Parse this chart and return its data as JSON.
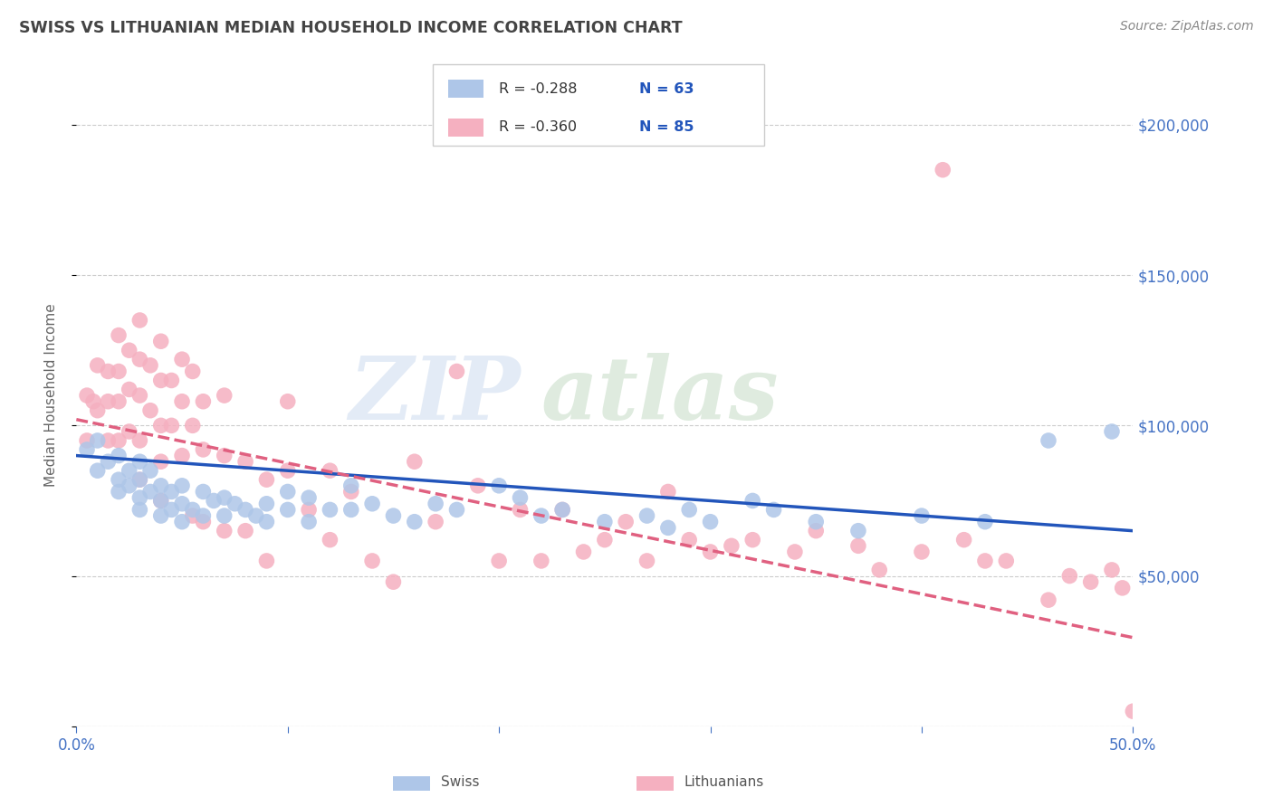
{
  "title": "SWISS VS LITHUANIAN MEDIAN HOUSEHOLD INCOME CORRELATION CHART",
  "source": "Source: ZipAtlas.com",
  "ylabel": "Median Household Income",
  "xlim": [
    0.0,
    0.5
  ],
  "ylim": [
    0,
    220000
  ],
  "yticks": [
    0,
    50000,
    100000,
    150000,
    200000
  ],
  "ytick_labels": [
    "",
    "$50,000",
    "$100,000",
    "$150,000",
    "$200,000"
  ],
  "xticks": [
    0.0,
    0.1,
    0.2,
    0.3,
    0.4,
    0.5
  ],
  "xtick_labels": [
    "0.0%",
    "",
    "",
    "",
    "",
    "50.0%"
  ],
  "legend_R_swiss": "R = -0.288",
  "legend_N_swiss": "N = 63",
  "legend_R_lith": "R = -0.360",
  "legend_N_lith": "N = 85",
  "swiss_color": "#aec6e8",
  "swiss_line_color": "#2255bb",
  "lith_color": "#f5b0c0",
  "lith_line_color": "#e06080",
  "background_color": "#ffffff",
  "grid_color": "#cccccc",
  "axis_tick_color": "#4472c4",
  "title_color": "#444444",
  "source_color": "#888888",
  "swiss_x": [
    0.005,
    0.01,
    0.01,
    0.015,
    0.02,
    0.02,
    0.02,
    0.025,
    0.025,
    0.03,
    0.03,
    0.03,
    0.03,
    0.035,
    0.035,
    0.04,
    0.04,
    0.04,
    0.045,
    0.045,
    0.05,
    0.05,
    0.05,
    0.055,
    0.06,
    0.06,
    0.065,
    0.07,
    0.07,
    0.075,
    0.08,
    0.085,
    0.09,
    0.09,
    0.1,
    0.1,
    0.11,
    0.11,
    0.12,
    0.13,
    0.13,
    0.14,
    0.15,
    0.16,
    0.17,
    0.18,
    0.2,
    0.21,
    0.22,
    0.23,
    0.25,
    0.27,
    0.28,
    0.29,
    0.3,
    0.32,
    0.33,
    0.35,
    0.37,
    0.4,
    0.43,
    0.46,
    0.49
  ],
  "swiss_y": [
    92000,
    95000,
    85000,
    88000,
    90000,
    82000,
    78000,
    85000,
    80000,
    88000,
    82000,
    76000,
    72000,
    85000,
    78000,
    80000,
    75000,
    70000,
    78000,
    72000,
    80000,
    74000,
    68000,
    72000,
    78000,
    70000,
    75000,
    76000,
    70000,
    74000,
    72000,
    70000,
    74000,
    68000,
    78000,
    72000,
    76000,
    68000,
    72000,
    80000,
    72000,
    74000,
    70000,
    68000,
    74000,
    72000,
    80000,
    76000,
    70000,
    72000,
    68000,
    70000,
    66000,
    72000,
    68000,
    75000,
    72000,
    68000,
    65000,
    70000,
    68000,
    95000,
    98000
  ],
  "lith_x": [
    0.005,
    0.005,
    0.008,
    0.01,
    0.01,
    0.015,
    0.015,
    0.015,
    0.02,
    0.02,
    0.02,
    0.02,
    0.025,
    0.025,
    0.025,
    0.03,
    0.03,
    0.03,
    0.03,
    0.03,
    0.035,
    0.035,
    0.04,
    0.04,
    0.04,
    0.04,
    0.04,
    0.045,
    0.045,
    0.05,
    0.05,
    0.05,
    0.055,
    0.055,
    0.055,
    0.06,
    0.06,
    0.06,
    0.07,
    0.07,
    0.07,
    0.08,
    0.08,
    0.09,
    0.09,
    0.1,
    0.1,
    0.11,
    0.12,
    0.12,
    0.13,
    0.14,
    0.15,
    0.16,
    0.17,
    0.18,
    0.19,
    0.2,
    0.21,
    0.22,
    0.23,
    0.24,
    0.25,
    0.26,
    0.27,
    0.28,
    0.29,
    0.3,
    0.31,
    0.32,
    0.34,
    0.35,
    0.37,
    0.38,
    0.4,
    0.41,
    0.42,
    0.43,
    0.44,
    0.46,
    0.47,
    0.48,
    0.49,
    0.495,
    0.5
  ],
  "lith_y": [
    110000,
    95000,
    108000,
    120000,
    105000,
    118000,
    108000,
    95000,
    130000,
    118000,
    108000,
    95000,
    125000,
    112000,
    98000,
    135000,
    122000,
    110000,
    95000,
    82000,
    120000,
    105000,
    128000,
    115000,
    100000,
    88000,
    75000,
    115000,
    100000,
    122000,
    108000,
    90000,
    118000,
    100000,
    70000,
    108000,
    92000,
    68000,
    110000,
    90000,
    65000,
    88000,
    65000,
    82000,
    55000,
    108000,
    85000,
    72000,
    85000,
    62000,
    78000,
    55000,
    48000,
    88000,
    68000,
    118000,
    80000,
    55000,
    72000,
    55000,
    72000,
    58000,
    62000,
    68000,
    55000,
    78000,
    62000,
    58000,
    60000,
    62000,
    58000,
    65000,
    60000,
    52000,
    58000,
    185000,
    62000,
    55000,
    55000,
    42000,
    50000,
    48000,
    52000,
    46000,
    5000
  ]
}
